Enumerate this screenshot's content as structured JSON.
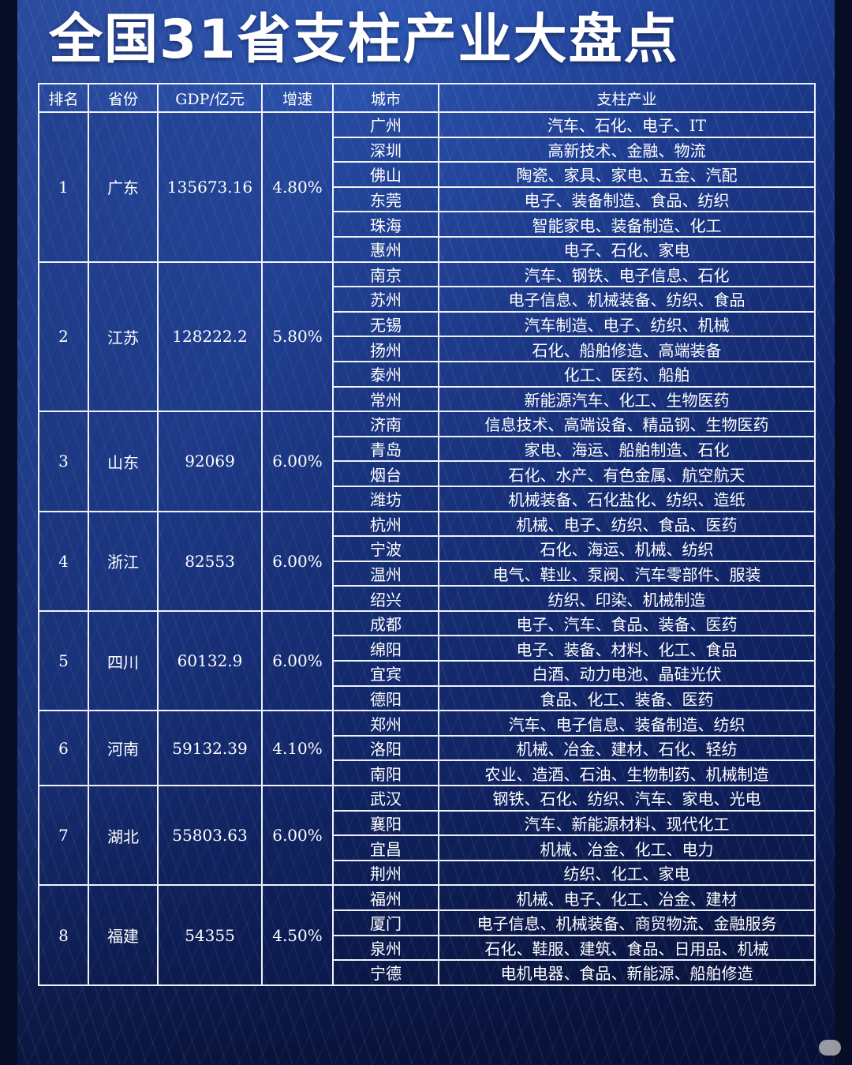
{
  "title": "全国31省支柱产业大盘点",
  "headers": [
    "排名",
    "省份",
    "GDP/亿元",
    "增速",
    "城市",
    "支柱产业"
  ],
  "provinces": [
    {
      "rank": "1",
      "province": "广东",
      "gdp": "135673.16",
      "growth": "4.80%",
      "cities": [
        {
          "city": "广州",
          "industries": "汽车、石化、电子、IT"
        },
        {
          "city": "深圳",
          "industries": "高新技术、金融、物流"
        },
        {
          "city": "佛山",
          "industries": "陶瓷、家具、家电、五金、汽配"
        },
        {
          "city": "东莞",
          "industries": "电子、装备制造、食品、纺织"
        },
        {
          "city": "珠海",
          "industries": "智能家电、装备制造、化工"
        },
        {
          "city": "惠州",
          "industries": "电子、石化、家电"
        }
      ]
    },
    {
      "rank": "2",
      "province": "江苏",
      "gdp": "128222.2",
      "growth": "5.80%",
      "cities": [
        {
          "city": "南京",
          "industries": "汽车、钢铁、电子信息、石化"
        },
        {
          "city": "苏州",
          "industries": "电子信息、机械装备、纺织、食品"
        },
        {
          "city": "无锡",
          "industries": "汽车制造、电子、纺织、机械"
        },
        {
          "city": "扬州",
          "industries": "石化、船舶修造、高端装备"
        },
        {
          "city": "泰州",
          "industries": "化工、医药、船舶"
        },
        {
          "city": "常州",
          "industries": "新能源汽车、化工、生物医药"
        }
      ]
    },
    {
      "rank": "3",
      "province": "山东",
      "gdp": "92069",
      "growth": "6.00%",
      "cities": [
        {
          "city": "济南",
          "industries": "信息技术、高端设备、精品钢、生物医药"
        },
        {
          "city": "青岛",
          "industries": "家电、海运、船舶制造、石化"
        },
        {
          "city": "烟台",
          "industries": "石化、水产、有色金属、航空航天"
        },
        {
          "city": "潍坊",
          "industries": "机械装备、石化盐化、纺织、造纸"
        }
      ]
    },
    {
      "rank": "4",
      "province": "浙江",
      "gdp": "82553",
      "growth": "6.00%",
      "cities": [
        {
          "city": "杭州",
          "industries": "机械、电子、纺织、食品、医药"
        },
        {
          "city": "宁波",
          "industries": "石化、海运、机械、纺织"
        },
        {
          "city": "温州",
          "industries": "电气、鞋业、泵阀、汽车零部件、服装"
        },
        {
          "city": "绍兴",
          "industries": "纺织、印染、机械制造"
        }
      ]
    },
    {
      "rank": "5",
      "province": "四川",
      "gdp": "60132.9",
      "growth": "6.00%",
      "cities": [
        {
          "city": "成都",
          "industries": "电子、汽车、食品、装备、医药"
        },
        {
          "city": "绵阳",
          "industries": "电子、装备、材料、化工、食品"
        },
        {
          "city": "宜宾",
          "industries": "白酒、动力电池、晶硅光伏"
        },
        {
          "city": "德阳",
          "industries": "食品、化工、装备、医药"
        }
      ]
    },
    {
      "rank": "6",
      "province": "河南",
      "gdp": "59132.39",
      "growth": "4.10%",
      "cities": [
        {
          "city": "郑州",
          "industries": "汽车、电子信息、装备制造、纺织"
        },
        {
          "city": "洛阳",
          "industries": "机械、冶金、建材、石化、轻纺"
        },
        {
          "city": "南阳",
          "industries": "农业、造酒、石油、生物制药、机械制造"
        }
      ]
    },
    {
      "rank": "7",
      "province": "湖北",
      "gdp": "55803.63",
      "growth": "6.00%",
      "cities": [
        {
          "city": "武汉",
          "industries": "钢铁、石化、纺织、汽车、家电、光电"
        },
        {
          "city": "襄阳",
          "industries": "汽车、新能源材料、现代化工"
        },
        {
          "city": "宜昌",
          "industries": "机械、冶金、化工、电力"
        },
        {
          "city": "荆州",
          "industries": "纺织、化工、家电"
        }
      ]
    },
    {
      "rank": "8",
      "province": "福建",
      "gdp": "54355",
      "growth": "4.50%",
      "cities": [
        {
          "city": "福州",
          "industries": "机械、电子、化工、冶金、建材"
        },
        {
          "city": "厦门",
          "industries": "电子信息、机械装备、商贸物流、金融服务"
        },
        {
          "city": "泉州",
          "industries": "石化、鞋服、建筑、食品、日用品、机械"
        },
        {
          "city": "宁德",
          "industries": "电机电器、食品、新能源、船舶修造"
        }
      ]
    }
  ]
}
